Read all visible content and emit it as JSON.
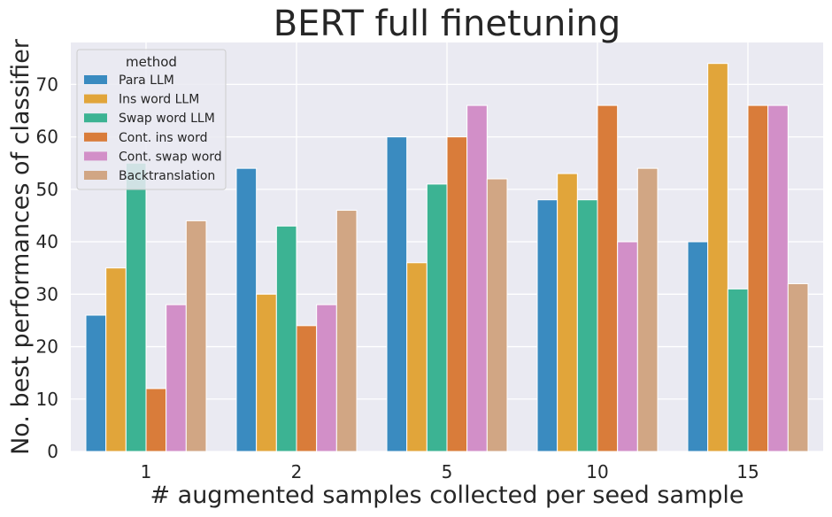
{
  "chart_data": {
    "type": "bar",
    "title": "BERT full finetuning",
    "xlabel": "# augmented samples collected per seed sample",
    "ylabel": "No. best performances of classifier",
    "categories": [
      "1",
      "2",
      "5",
      "10",
      "15"
    ],
    "ylim": [
      0,
      78
    ],
    "yticks": [
      0,
      10,
      20,
      30,
      40,
      50,
      60,
      70
    ],
    "grid": true,
    "legend": {
      "title": "method",
      "placement": "top-left"
    },
    "series": [
      {
        "name": "Para LLM",
        "color": "#3a8bc0",
        "values": [
          26,
          54,
          60,
          48,
          40
        ]
      },
      {
        "name": "Ins word LLM",
        "color": "#e1a53a",
        "values": [
          35,
          30,
          36,
          53,
          74
        ]
      },
      {
        "name": "Swap word LLM",
        "color": "#3cb393",
        "values": [
          55,
          43,
          51,
          48,
          31
        ]
      },
      {
        "name": "Cont. ins word",
        "color": "#d97c3a",
        "values": [
          12,
          24,
          60,
          66,
          66
        ]
      },
      {
        "name": "Cont. swap word",
        "color": "#d28fc8",
        "values": [
          28,
          28,
          66,
          40,
          66
        ]
      },
      {
        "name": "Backtranslation",
        "color": "#d1a684",
        "values": [
          44,
          46,
          52,
          54,
          32
        ]
      }
    ]
  }
}
